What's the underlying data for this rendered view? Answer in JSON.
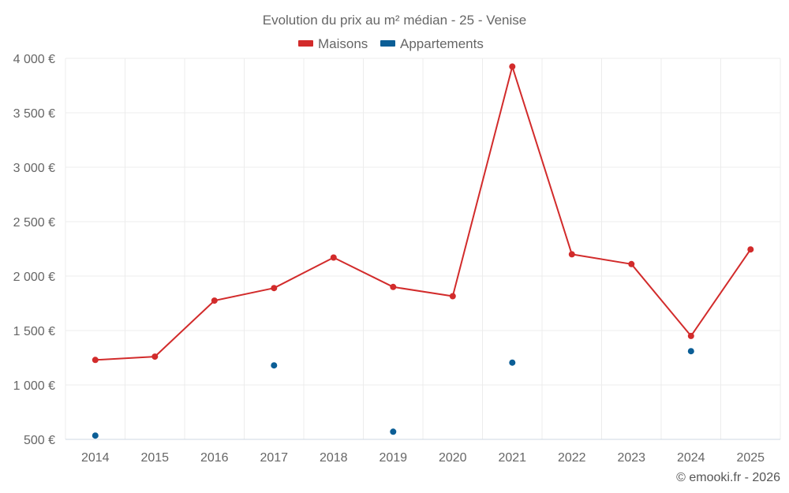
{
  "chart_data": {
    "type": "line",
    "title": "Evolution du prix au m² médian - 25 - Venise",
    "categories": [
      "2014",
      "2015",
      "2016",
      "2017",
      "2018",
      "2019",
      "2020",
      "2021",
      "2022",
      "2023",
      "2024",
      "2025"
    ],
    "series": [
      {
        "name": "Maisons",
        "color": "#d22b2b",
        "mode": "line",
        "values": [
          1230,
          1260,
          1775,
          1890,
          2170,
          1900,
          1815,
          3925,
          2200,
          2110,
          1450,
          2245
        ]
      },
      {
        "name": "Appartements",
        "color": "#0b5e96",
        "mode": "markers",
        "values": [
          535,
          null,
          null,
          1180,
          null,
          570,
          null,
          1205,
          null,
          null,
          1310,
          null
        ]
      }
    ],
    "ylim": [
      500,
      4000
    ],
    "yticks": [
      500,
      1000,
      1500,
      2000,
      2500,
      3000,
      3500,
      4000
    ],
    "ytick_labels": [
      "500 €",
      "1 000 €",
      "1 500 €",
      "2 000 €",
      "2 500 €",
      "3 000 €",
      "3 500 €",
      "4 000 €"
    ],
    "xlabel": "",
    "ylabel": "",
    "legend_position": "top-center",
    "grid": true
  },
  "credit": "© emooki.fr - 2026"
}
